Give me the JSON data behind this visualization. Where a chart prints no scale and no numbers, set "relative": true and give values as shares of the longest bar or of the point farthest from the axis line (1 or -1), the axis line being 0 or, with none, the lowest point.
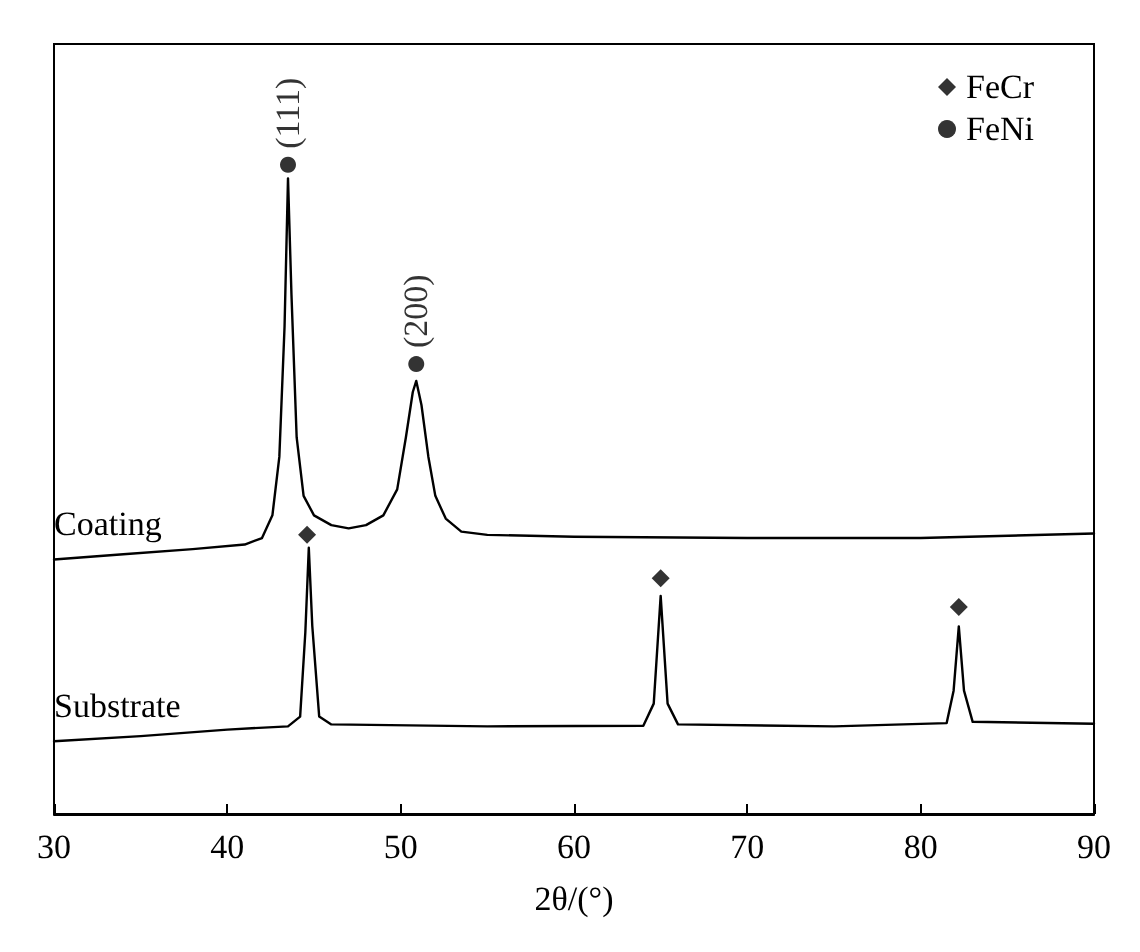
{
  "chart_data": {
    "type": "line",
    "xlabel": "2θ/(°)",
    "xlim": [
      30,
      90
    ],
    "xticks": [
      30,
      40,
      50,
      60,
      70,
      80,
      90
    ],
    "relative": true,
    "grid": false,
    "legend": "top right",
    "line_style": "solid",
    "marker": "none",
    "series": [
      {
        "name": "Coating",
        "color": "#000000",
        "x": [
          30,
          34,
          38,
          41,
          42,
          42.6,
          43.0,
          43.3,
          43.5,
          43.7,
          44.0,
          44.4,
          45,
          46,
          47,
          48,
          49,
          49.8,
          50.3,
          50.7,
          50.9,
          51.2,
          51.6,
          52,
          52.6,
          53.5,
          55,
          60,
          70,
          80,
          90
        ],
        "values": [
          0.392,
          0.4,
          0.408,
          0.415,
          0.425,
          0.46,
          0.55,
          0.75,
          0.979,
          0.8,
          0.58,
          0.49,
          0.46,
          0.445,
          0.44,
          0.445,
          0.46,
          0.5,
          0.58,
          0.65,
          0.667,
          0.63,
          0.55,
          0.49,
          0.455,
          0.435,
          0.43,
          0.427,
          0.425,
          0.425,
          0.432
        ]
      },
      {
        "name": "Substrate",
        "color": "#000000",
        "x": [
          30,
          35,
          40,
          43.5,
          44.2,
          44.5,
          44.7,
          44.9,
          45.3,
          46,
          55,
          64,
          64.6,
          65.0,
          65.4,
          66,
          75,
          81.5,
          81.9,
          82.2,
          82.5,
          83,
          90
        ],
        "values": [
          0.112,
          0.12,
          0.13,
          0.135,
          0.15,
          0.28,
          0.41,
          0.29,
          0.15,
          0.138,
          0.135,
          0.136,
          0.17,
          0.336,
          0.17,
          0.138,
          0.135,
          0.14,
          0.19,
          0.289,
          0.19,
          0.142,
          0.139
        ]
      },
      {
        "name": "FeCr",
        "type": "scatter",
        "marker": "diamond",
        "color": "#000000",
        "x": [
          44.6,
          65,
          82.2
        ],
        "values": [
          0.43,
          0.363,
          0.319
        ]
      },
      {
        "name": "FeNi",
        "type": "scatter",
        "marker": "circle",
        "color": "#000000",
        "x": [
          43.5,
          50.9
        ],
        "values": [
          1.0,
          0.693
        ]
      }
    ],
    "annotations": [
      {
        "text": "(111)",
        "x": 43.5,
        "y": 1.0
      },
      {
        "text": "(200)",
        "x": 50.9,
        "y": 0.693
      }
    ]
  }
}
